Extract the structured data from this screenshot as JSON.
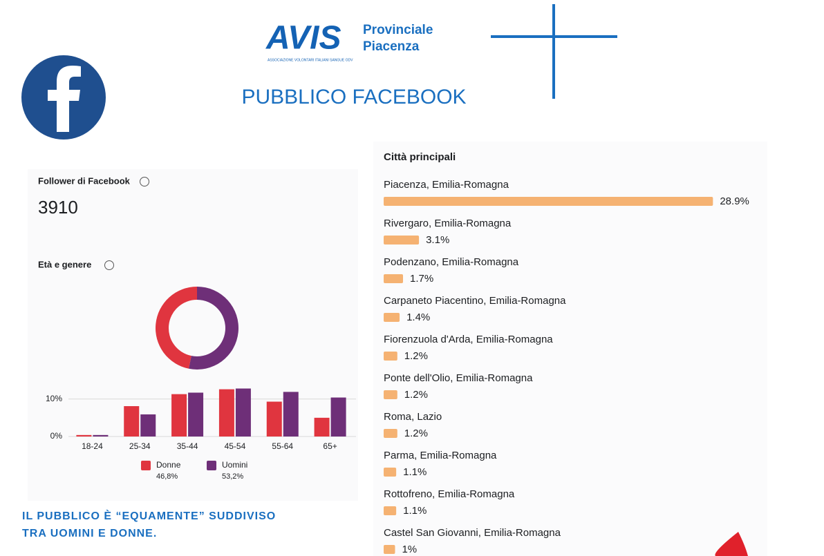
{
  "header": {
    "logo": "AVIS",
    "logo_sub": "ASSOCIAZIONE VOLONTARI ITALIANI SANGUE ODV",
    "org": [
      "Provinciale",
      "Piacenza"
    ],
    "title": "PUBBLICO FACEBOOK"
  },
  "followers": {
    "label": "Follower di Facebook",
    "value": "3910"
  },
  "note": [
    "IL PUBBLICO È “EQUAMENTE” SUDDIVISO",
    "TRA UOMINI E DONNE."
  ],
  "chart_data": [
    {
      "type": "pie",
      "title": "Età e genere",
      "values": [
        46.8,
        53.2
      ],
      "value_labels": [
        "46,8%",
        "53,2%"
      ],
      "colors": [
        "#e0353f",
        "#6e2f78"
      ]
    },
    {
      "type": "bar",
      "categories": [
        "18-24",
        "25-34",
        "35-44",
        "45-54",
        "55-64",
        "65+"
      ],
      "series": [
        {
          "name": "Donne",
          "color": "#e0353f",
          "values": [
            0.4,
            8.1,
            11.3,
            12.6,
            9.3,
            5.0
          ]
        },
        {
          "name": "Uomini",
          "color": "#6e2f78",
          "values": [
            0.4,
            5.9,
            11.7,
            12.8,
            11.9,
            10.4
          ]
        }
      ],
      "ylim": [
        0,
        14
      ],
      "yticks": [
        {
          "value": 0,
          "label": "0%"
        },
        {
          "value": 10,
          "label": "10%"
        }
      ],
      "grid": true
    },
    {
      "type": "hbar",
      "title": "Città principali",
      "categories": [
        "Piacenza, Emilia-Romagna",
        "Rivergaro, Emilia-Romagna",
        "Podenzano, Emilia-Romagna",
        "Carpaneto Piacentino, Emilia-Romagna",
        "Fiorenzuola d'Arda, Emilia-Romagna",
        "Ponte dell'Olio, Emilia-Romagna",
        "Roma, Lazio",
        "Parma, Emilia-Romagna",
        "Rottofreno, Emilia-Romagna",
        "Castel San Giovanni, Emilia-Romagna"
      ],
      "values": [
        28.9,
        3.1,
        1.7,
        1.4,
        1.2,
        1.2,
        1.2,
        1.1,
        1.1,
        1.0
      ],
      "value_labels": [
        "28.9%",
        "3.1%",
        "1.7%",
        "1.4%",
        "1.2%",
        "1.2%",
        "1.2%",
        "1.1%",
        "1.1%",
        "1%"
      ],
      "color": "#f5b272",
      "xlim": [
        0,
        29
      ]
    }
  ]
}
